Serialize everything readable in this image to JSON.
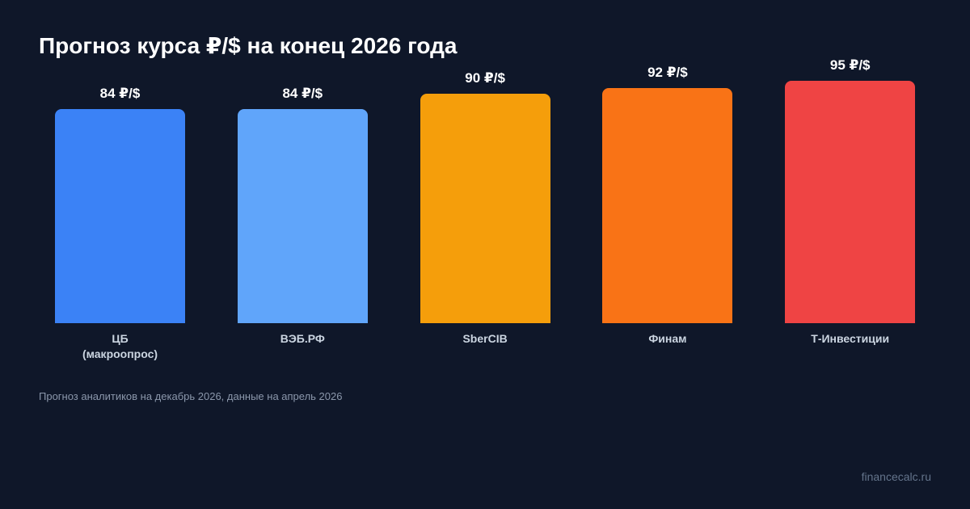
{
  "chart_data": {
    "type": "bar",
    "title": "Прогноз курса ₽/$ на конец 2026 года",
    "categories": [
      "ЦБ\n(макроопрос)",
      "ВЭБ.РФ",
      "SberCIB",
      "Финам",
      "Т-Инвестиции"
    ],
    "values": [
      84,
      84,
      90,
      92,
      95
    ],
    "value_labels": [
      "84 ₽/$",
      "84 ₽/$",
      "90 ₽/$",
      "92 ₽/$",
      "95 ₽/$"
    ],
    "colors": [
      "#3b82f6",
      "#60a5fa",
      "#f59e0b",
      "#f97316",
      "#ef4444"
    ],
    "footnote": "Прогноз аналитиков на декабрь 2026, данные на апрель 2026",
    "watermark": "financecalc.ru"
  }
}
